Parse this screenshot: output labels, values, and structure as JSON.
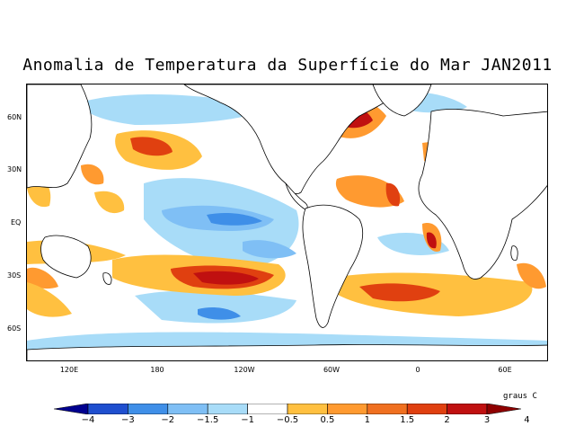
{
  "title": "Anomalia de Temperatura da Superfície do Mar JAN2011",
  "units_label": "graus C",
  "y_axis_labels": [
    "60N",
    "30N",
    "EQ",
    "30S",
    "60S"
  ],
  "x_axis_labels": [
    "120E",
    "180",
    "120W",
    "60W",
    "0",
    "60E"
  ],
  "colorbar": {
    "colors": [
      "#00008f",
      "#1f4fcf",
      "#3f8fe8",
      "#7fbff5",
      "#a8dcf8",
      "#ffffff",
      "#ffc040",
      "#ff9a30",
      "#f07020",
      "#e04010",
      "#c01010",
      "#8f0000"
    ],
    "tick_labels": [
      "−4",
      "−3",
      "−2",
      "−1.5",
      "−1",
      "−0.5",
      "0.5",
      "1",
      "1.5",
      "2",
      "3",
      "4"
    ]
  }
}
